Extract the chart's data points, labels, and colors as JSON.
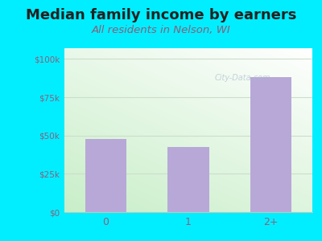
{
  "title": "Median family income by earners",
  "subtitle": "All residents in Nelson, WI",
  "categories": [
    "0",
    "1",
    "2+"
  ],
  "values": [
    47500,
    42500,
    88000
  ],
  "bar_color": "#b8a8d8",
  "background_outer": "#00eeff",
  "title_fontsize": 13,
  "subtitle_fontsize": 9.5,
  "yticks": [
    0,
    25000,
    50000,
    75000,
    100000
  ],
  "ytick_labels": [
    "$0",
    "$25k",
    "$50k",
    "$75k",
    "$100k"
  ],
  "ylim": [
    0,
    107000
  ],
  "title_color": "#222222",
  "subtitle_color": "#8b5e7a",
  "tick_color": "#8b6080",
  "grid_color": "#ccddcc",
  "watermark": "City-Data.com"
}
